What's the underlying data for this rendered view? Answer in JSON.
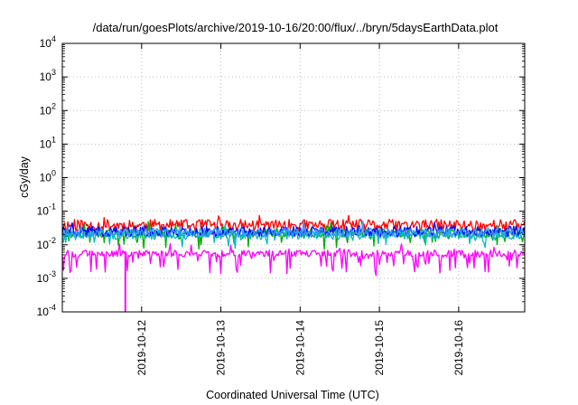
{
  "chart_data": {
    "type": "line",
    "title": "/data/run/goesPlots/archive/2019-10-16/20:00/flux/../bryn/5daysEarthData.plot",
    "xlabel": "Coordinated Universal Time (UTC)",
    "ylabel": "cGy/day",
    "yscale": "log",
    "ylim": [
      0.0001,
      10000
    ],
    "xlim": [
      "2019-10-11T00:00",
      "2019-10-16T20:00"
    ],
    "xticks": [
      {
        "label": "2019-10-12",
        "x": "2019-10-12T00:00"
      },
      {
        "label": "2019-10-13",
        "x": "2019-10-13T00:00"
      },
      {
        "label": "2019-10-14",
        "x": "2019-10-14T00:00"
      },
      {
        "label": "2019-10-15",
        "x": "2019-10-15T00:00"
      },
      {
        "label": "2019-10-16",
        "x": "2019-10-16T00:00"
      }
    ],
    "yticks": [
      {
        "base": "10",
        "exp": "-4",
        "value": 0.0001
      },
      {
        "base": "10",
        "exp": "-3",
        "value": 0.001
      },
      {
        "base": "10",
        "exp": "-2",
        "value": 0.01
      },
      {
        "base": "10",
        "exp": "-1",
        "value": 0.1
      },
      {
        "base": "10",
        "exp": "0",
        "value": 1
      },
      {
        "base": "10",
        "exp": "1",
        "value": 10
      },
      {
        "base": "10",
        "exp": "2",
        "value": 100
      },
      {
        "base": "10",
        "exp": "3",
        "value": 1000
      },
      {
        "base": "10",
        "exp": "4",
        "value": 10000
      }
    ],
    "grid": true,
    "series": [
      {
        "color": "#ff0000",
        "base": 0.038,
        "spread": 0.35,
        "dips": 0.0,
        "dipDepth": 1.0,
        "seed": 11
      },
      {
        "color": "#00aa00",
        "base": 0.022,
        "spread": 0.25,
        "dips": 0.3,
        "dipDepth": 2.5,
        "seed": 23
      },
      {
        "color": "#00bbbb",
        "base": 0.02,
        "spread": 0.28,
        "dips": 0.25,
        "dipDepth": 2.2,
        "seed": 37
      },
      {
        "color": "#0000ff",
        "base": 0.025,
        "spread": 0.3,
        "dips": 0.0,
        "dipDepth": 1.0,
        "seed": 41
      },
      {
        "color": "#3399ff",
        "base": 0.023,
        "spread": 0.28,
        "dips": 0.0,
        "dipDepth": 1.0,
        "seed": 53
      },
      {
        "color": "#ff00ff",
        "base": 0.0055,
        "spread": 0.2,
        "dips": 0.5,
        "dipDepth": 4.0,
        "seed": 67,
        "spikeDown": {
          "x": "2019-10-11T19:00",
          "value": 0.0001
        }
      }
    ]
  }
}
